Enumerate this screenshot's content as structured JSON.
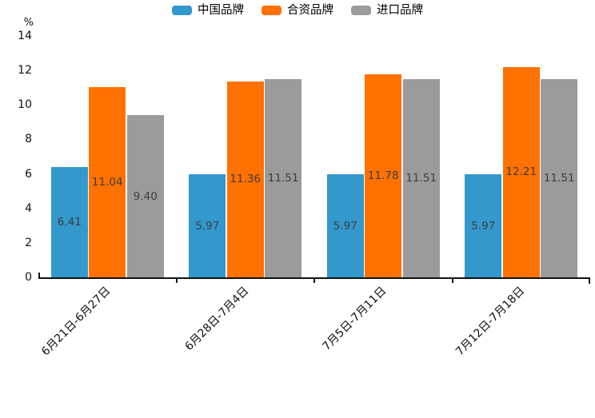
{
  "chart_data": {
    "type": "bar",
    "title": "",
    "unit_label": "%",
    "categories": [
      "6月21日-6月27日",
      "6月28日-7月4日",
      "7月5日-7月11日",
      "7月12日-7月18日"
    ],
    "series": [
      {
        "key": "china-brand",
        "name": "中国品牌",
        "color": "#3398cc",
        "values": [
          6.41,
          5.97,
          5.97,
          5.97
        ]
      },
      {
        "key": "joint-venture-brand",
        "name": "合资品牌",
        "color": "#ff7100",
        "values": [
          11.04,
          11.36,
          11.78,
          12.21
        ]
      },
      {
        "key": "import-brand",
        "name": "进口品牌",
        "color": "#9b9b9b",
        "values": [
          9.4,
          11.51,
          11.51,
          11.51
        ]
      }
    ],
    "ylim": [
      0,
      14
    ],
    "yticks": [
      0,
      2,
      4,
      6,
      8,
      10,
      12,
      14
    ],
    "grid": false,
    "legend_position": "top",
    "value_label_format": "0.00",
    "colors": {
      "axis": "#111111",
      "bar_value_label": "#3d3d3d",
      "background": "#ffffff"
    }
  }
}
